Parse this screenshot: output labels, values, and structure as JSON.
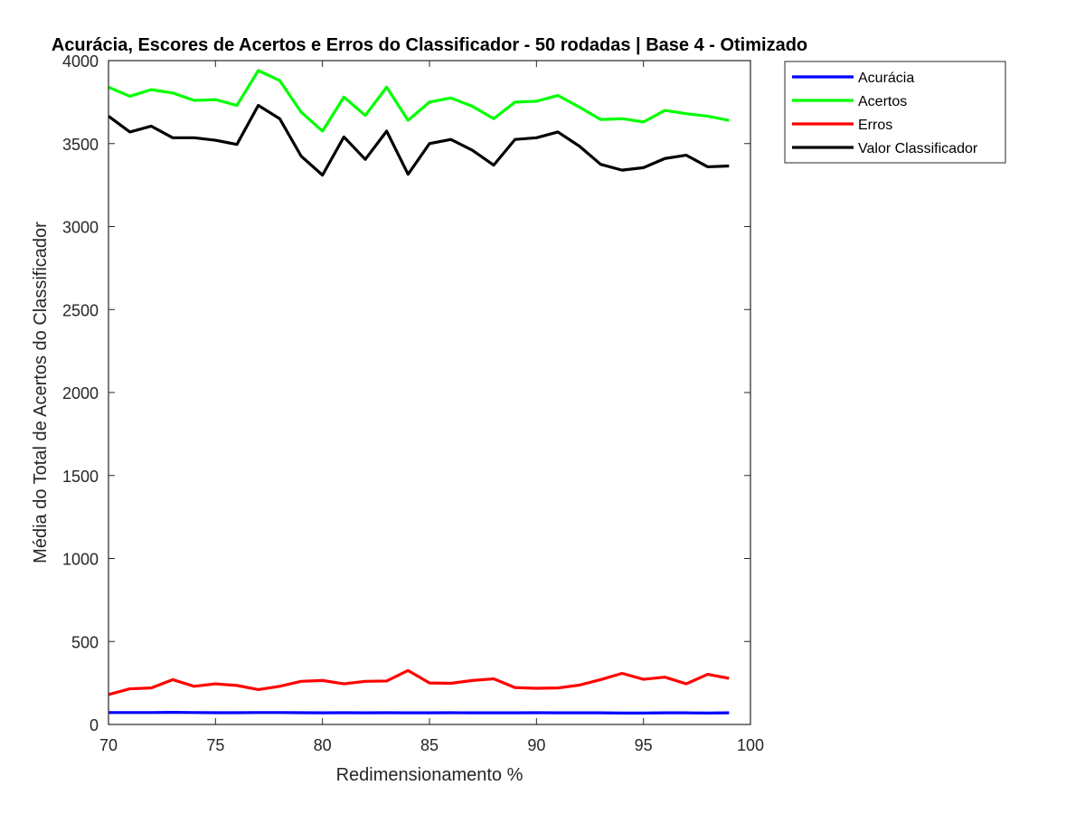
{
  "chart_data": {
    "type": "line",
    "title": "Acurácia, Escores de Acertos e Erros do Classificador - 50 rodadas | Base 4 - Otimizado",
    "xlabel": "Redimensionamento %",
    "ylabel": "Média do Total de Acertos do Classificador",
    "xlim": [
      70,
      100
    ],
    "ylim": [
      0,
      4000
    ],
    "xticks": [
      70,
      75,
      80,
      85,
      90,
      95,
      100
    ],
    "yticks": [
      0,
      500,
      1000,
      1500,
      2000,
      2500,
      3000,
      3500,
      4000
    ],
    "grid": false,
    "legend_position": "outside-top-right",
    "x": [
      70,
      71,
      72,
      73,
      74,
      75,
      76,
      77,
      78,
      79,
      80,
      81,
      82,
      83,
      84,
      85,
      86,
      87,
      88,
      89,
      90,
      91,
      92,
      93,
      94,
      95,
      96,
      97,
      98,
      99
    ],
    "series": [
      {
        "name": "Acurácia",
        "color": "#0000ff",
        "values": [
          72,
          72,
          72,
          73,
          72,
          71,
          71,
          72,
          72,
          71,
          70,
          71,
          70,
          71,
          70,
          70,
          71,
          70,
          70,
          70,
          71,
          70,
          70,
          70,
          69,
          69,
          70,
          70,
          69,
          70
        ]
      },
      {
        "name": "Acertos",
        "color": "#00ff00",
        "values": [
          3840,
          3785,
          3825,
          3805,
          3760,
          3765,
          3730,
          3940,
          3880,
          3690,
          3575,
          3780,
          3670,
          3840,
          3640,
          3750,
          3775,
          3725,
          3650,
          3750,
          3755,
          3790,
          3720,
          3645,
          3650,
          3630,
          3700,
          3680,
          3665,
          3640
        ]
      },
      {
        "name": "Erros",
        "color": "#ff0000",
        "values": [
          180,
          215,
          220,
          270,
          230,
          245,
          235,
          210,
          230,
          260,
          265,
          245,
          260,
          262,
          325,
          250,
          248,
          265,
          275,
          222,
          218,
          220,
          237,
          270,
          308,
          272,
          285,
          245,
          302,
          278
        ]
      },
      {
        "name": "Valor Classificador",
        "color": "#000000",
        "values": [
          3665,
          3570,
          3605,
          3535,
          3535,
          3520,
          3495,
          3730,
          3650,
          3425,
          3310,
          3540,
          3405,
          3575,
          3315,
          3500,
          3525,
          3460,
          3370,
          3525,
          3535,
          3570,
          3485,
          3375,
          3340,
          3355,
          3410,
          3430,
          3360,
          3365
        ]
      }
    ]
  }
}
